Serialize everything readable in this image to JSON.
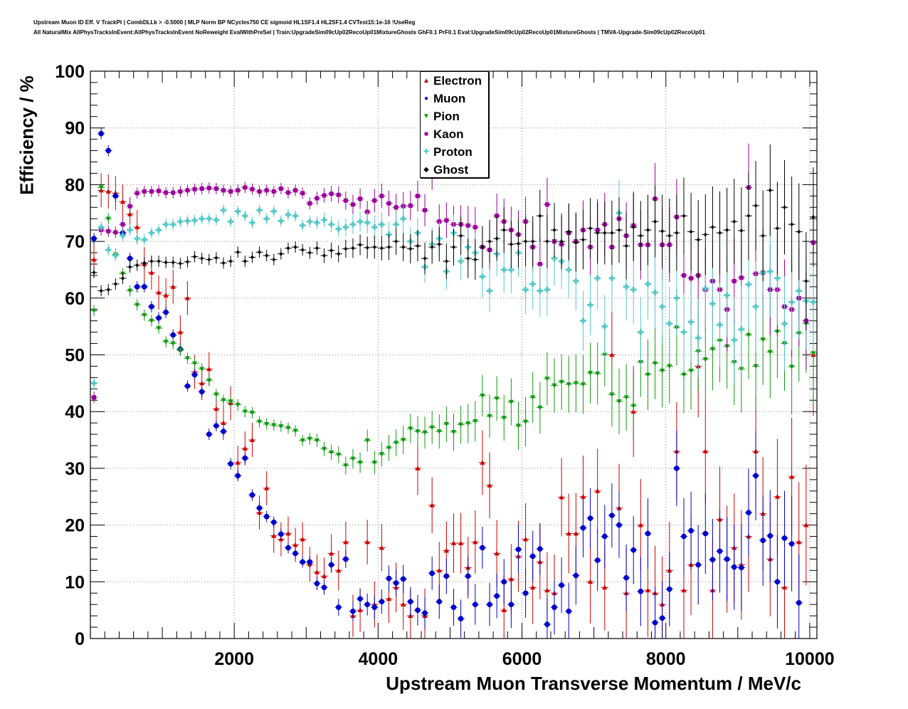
{
  "header": {
    "line1": "Upstream Muon ID Eff. V TrackPt | CombDLLk > -0.5000 | MLP Norm BP NCycles750 CE sigmoid HL1SF1.4 HL2SF1.4 CVTest15:1e-16 !UseReg",
    "line2": "All NaturalMix AllPhysTracksInEvent:AllPhysTracksInEvent NoReweight EvalWithPreSel | Train:UpgradeSim09cUp02RecoUp01MixtureGhosts GhF0.1 PrF0.1 Eval:UpgradeSim09cUp02RecoUp01MixtureGhosts | TMVA-Upgrade-Sim09cUp02RecoUp01"
  },
  "chart_data": {
    "type": "scatter",
    "xlabel": "Upstream Muon Transverse Momentum / MeV/c",
    "ylabel": "Efficiency / %",
    "xlim": [
      0,
      10100
    ],
    "ylim": [
      0,
      100
    ],
    "xticks": [
      2000,
      4000,
      6000,
      8000,
      10000
    ],
    "yticks": [
      0,
      10,
      20,
      30,
      40,
      50,
      60,
      70,
      80,
      90,
      100
    ],
    "grid": true,
    "legend_position": "top-center",
    "x": [
      50,
      150,
      250,
      350,
      450,
      550,
      650,
      750,
      850,
      950,
      1050,
      1150,
      1250,
      1350,
      1450,
      1550,
      1650,
      1750,
      1850,
      1950,
      2050,
      2150,
      2250,
      2350,
      2450,
      2550,
      2650,
      2750,
      2850,
      2950,
      3050,
      3150,
      3250,
      3350,
      3450,
      3550,
      3650,
      3750,
      3850,
      3950,
      4050,
      4150,
      4250,
      4350,
      4450,
      4550,
      4650,
      4750,
      4850,
      4950,
      5050,
      5150,
      5250,
      5350,
      5450,
      5550,
      5650,
      5750,
      5850,
      5950,
      6050,
      6150,
      6250,
      6350,
      6450,
      6550,
      6650,
      6750,
      6850,
      6950,
      7050,
      7150,
      7250,
      7350,
      7450,
      7550,
      7650,
      7750,
      7850,
      7950,
      8050,
      8150,
      8250,
      8350,
      8450,
      8550,
      8650,
      8750,
      8850,
      8950,
      9050,
      9150,
      9250,
      9350,
      9450,
      9550,
      9650,
      9750,
      9850,
      9950,
      10050
    ],
    "series": [
      {
        "name": "Electron",
        "color": "#cc0000",
        "marker": "triangle-up",
        "values": [
          66.8,
          79,
          78.8,
          78.5,
          77,
          74.8,
          72.5,
          66,
          64.5,
          61,
          60.5,
          62,
          54,
          60,
          47,
          45,
          47.5,
          40.5,
          38,
          41.5,
          31,
          33.5,
          35,
          22.2,
          26.5,
          18.1,
          17.5,
          18.5,
          16.5,
          17.5,
          13.1,
          11.7,
          11,
          15,
          12,
          17,
          4,
          5,
          17,
          6,
          16,
          7,
          9,
          6,
          4,
          30,
          4,
          23.5,
          12,
          15.5,
          16.8,
          16.8,
          12.5,
          17,
          31,
          27,
          15,
          5,
          10.5,
          14.5,
          17.5,
          9,
          13.5,
          8.5,
          8,
          24.9,
          18.5,
          18.5,
          25,
          10,
          26,
          9,
          50,
          23,
          8,
          40,
          20,
          8.5,
          8,
          6,
          12,
          33,
          8.5,
          13,
          48,
          33,
          8.5,
          21,
          14,
          16,
          13,
          18,
          33,
          22,
          14,
          25,
          9,
          28.5,
          17,
          20,
          50
        ]
      },
      {
        "name": "Muon",
        "color": "#0000cc",
        "marker": "circle",
        "values": [
          70.5,
          89,
          86,
          78,
          71.5,
          67,
          62,
          62,
          58.5,
          56.5,
          57.5,
          53.5,
          51,
          44.5,
          46.5,
          43.5,
          36,
          37.5,
          36.5,
          30.8,
          28.7,
          31.8,
          25.3,
          23,
          21.5,
          20.5,
          18.4,
          16,
          15,
          13.5,
          13.5,
          9.7,
          9,
          13,
          5.5,
          14,
          4.8,
          7,
          6,
          5.5,
          6.5,
          10.6,
          9.8,
          10.5,
          6.5,
          5,
          4.5,
          11.5,
          6.5,
          11,
          5.5,
          3.5,
          11,
          6,
          16,
          6,
          7.5,
          10,
          6,
          15.7,
          8,
          14.5,
          15.8,
          2.5,
          5.5,
          9.4,
          4.8,
          11.1,
          19.5,
          21.2,
          13.8,
          18,
          21.7,
          20,
          10.7,
          15.6,
          8.3,
          18.5,
          2.8,
          3.6,
          8.7,
          30,
          18,
          19,
          13,
          18.5,
          13.9,
          15.4,
          14,
          12.6,
          12.5,
          22.2,
          28.7,
          17.3,
          18.1,
          10,
          17.7,
          16.7,
          6.3,
          null,
          null
        ]
      },
      {
        "name": "Pion",
        "color": "#119911",
        "marker": "triangle-down",
        "values": [
          57.8,
          79.5,
          74,
          67.7,
          64.3,
          61.3,
          58.8,
          57,
          56,
          54.7,
          52.3,
          52,
          50.8,
          49.4,
          48.5,
          47.5,
          45.5,
          43,
          42,
          41.8,
          41.2,
          40,
          39.8,
          38.2,
          37.8,
          37.6,
          37.4,
          37.1,
          36.6,
          34.9,
          35.2,
          34.9,
          33.4,
          32.8,
          32.4,
          30.5,
          31.7,
          31,
          34.9,
          31,
          32.5,
          33.6,
          34.5,
          35,
          37,
          36.5,
          36.3,
          37.2,
          36.5,
          37.8,
          36.4,
          37.7,
          37.9,
          38.3,
          42.8,
          39.2,
          42.3,
          38.9,
          41.7,
          37.5,
          38.2,
          42.5,
          40.7,
          45.8,
          44.6,
          45.2,
          44.8,
          45,
          44.8,
          46.8,
          46.7,
          50,
          43,
          41.8,
          42.5,
          41,
          48.7,
          46.5,
          48.5,
          47.2,
          48,
          54.8,
          46.5,
          47.2,
          50.6,
          49.2,
          51,
          52.5,
          51.5,
          48.7,
          47.5,
          53.5,
          48,
          52.7,
          50.5,
          54.1,
          52,
          47.9,
          53.8,
          55.5,
          50.3
        ]
      },
      {
        "name": "Kaon",
        "color": "#990099",
        "marker": "square",
        "values": [
          42.5,
          72,
          71.8,
          71.6,
          73,
          76.2,
          78.5,
          78.8,
          78.8,
          78.9,
          78.6,
          78.6,
          78.8,
          79,
          79.2,
          79.3,
          79.4,
          79.3,
          79.0,
          78.8,
          79.0,
          79.5,
          79.2,
          78.8,
          79,
          78.8,
          79.3,
          78.6,
          79,
          78.5,
          76.7,
          77.6,
          78.1,
          78.4,
          78.2,
          77.2,
          76.5,
          77.5,
          75.2,
          77.2,
          78,
          76.7,
          76,
          76.2,
          76.3,
          78,
          75.5,
          82,
          73.5,
          73.7,
          73,
          73,
          72.8,
          72.5,
          69,
          68.5,
          74.5,
          73.5,
          72,
          71.2,
          73.5,
          69,
          66,
          76.5,
          70,
          69.5,
          71.5,
          70,
          72,
          69,
          72,
          73,
          69,
          74,
          71,
          72.8,
          69.4,
          69.4,
          77.5,
          69.4,
          69.4,
          74.3,
          64,
          63.5,
          64,
          61.5,
          63,
          61.5,
          58,
          63,
          63.6,
          79.5,
          64.3,
          64.5,
          61.5,
          61.5,
          58.5,
          58,
          60,
          56,
          69.8
        ]
      },
      {
        "name": "Proton",
        "color": "#55c8c8",
        "marker": "cross",
        "values": [
          45,
          72.5,
          68.5,
          67.5,
          71,
          72,
          70.5,
          70.3,
          71.5,
          72,
          73,
          73,
          73.5,
          73.6,
          73.7,
          74.0,
          74.0,
          73.8,
          75.5,
          73.5,
          75.3,
          74.5,
          73.3,
          75.5,
          74,
          75.3,
          73.6,
          74.7,
          74.5,
          72.8,
          73.5,
          73.3,
          73.8,
          73,
          72.2,
          72.5,
          73,
          73.5,
          73.3,
          72.5,
          73,
          71.2,
          73,
          74,
          70,
          71.5,
          65.5,
          69.5,
          70.5,
          64.7,
          71.5,
          66.5,
          69,
          68,
          63.8,
          61.3,
          67.8,
          65,
          65,
          68,
          61.5,
          62.5,
          61.3,
          61.5,
          67,
          66.5,
          65,
          63,
          56,
          58.8,
          63.5,
          55,
          63.5,
          75,
          62,
          61.5,
          54,
          62.5,
          61,
          58.5,
          55.5,
          60,
          54,
          55.8,
          53,
          61.7,
          59,
          55.3,
          60.5,
          52.6,
          54.5,
          62.4,
          58.5,
          64.5,
          64.7,
          63.5,
          55.5,
          59.3,
          61.3,
          59.5,
          59.3
        ]
      },
      {
        "name": "Ghost",
        "color": "#000000",
        "marker": "diamond",
        "values": [
          64.5,
          61.3,
          61.5,
          62.5,
          63.5,
          65.5,
          65.8,
          66.2,
          66.5,
          66.5,
          66.3,
          66.3,
          66.1,
          66.4,
          67.3,
          67,
          66.8,
          67.1,
          66.2,
          66.5,
          68.1,
          66.5,
          67.2,
          68.1,
          67.5,
          66.8,
          67.8,
          68.8,
          69,
          68.5,
          68,
          68.8,
          67.5,
          68.4,
          67.8,
          68.7,
          68.8,
          69.4,
          68.9,
          69,
          68.8,
          69,
          70,
          69,
          68.7,
          69.2,
          67,
          69,
          69.5,
          66.5,
          69,
          71,
          67,
          66.8,
          69,
          70,
          70.5,
          72,
          69.5,
          69.6,
          70,
          70,
          74.5,
          70,
          72,
          70,
          71.7,
          69.8,
          70.3,
          72.3,
          71.5,
          71.5,
          71.5,
          72,
          69.2,
          72.5,
          71,
          72,
          73.5,
          71.8,
          71,
          71.5,
          74.5,
          71.7,
          70.3,
          71.2,
          72.5,
          71.5,
          72,
          73.5,
          71.9,
          74.5,
          76.3,
          71,
          79,
          72.3,
          76,
          73,
          71.7,
          63,
          74.3
        ]
      }
    ]
  }
}
